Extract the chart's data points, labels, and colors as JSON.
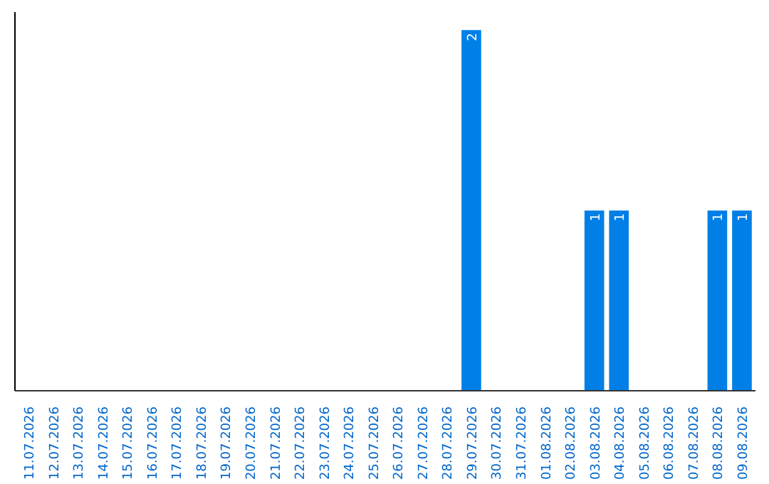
{
  "chart_data": {
    "type": "bar",
    "categories": [
      "11.07.2026",
      "12.07.2026",
      "13.07.2026",
      "14.07.2026",
      "15.07.2026",
      "16.07.2026",
      "17.07.2026",
      "18.07.2026",
      "19.07.2026",
      "20.07.2026",
      "21.07.2026",
      "22.07.2026",
      "23.07.2026",
      "24.07.2026",
      "25.07.2026",
      "26.07.2026",
      "27.07.2026",
      "28.07.2026",
      "29.07.2026",
      "30.07.2026",
      "31.07.2026",
      "01.08.2026",
      "02.08.2026",
      "03.08.2026",
      "04.08.2026",
      "05.08.2026",
      "06.08.2026",
      "07.08.2026",
      "08.08.2026",
      "09.08.2026"
    ],
    "values": [
      null,
      null,
      null,
      null,
      null,
      null,
      null,
      null,
      null,
      null,
      null,
      null,
      null,
      null,
      null,
      null,
      null,
      null,
      2,
      null,
      null,
      null,
      null,
      1,
      1,
      null,
      null,
      null,
      1,
      1
    ],
    "data_labels": true,
    "color": "#0080e6",
    "tick_labels": "x",
    "grid": false
  }
}
